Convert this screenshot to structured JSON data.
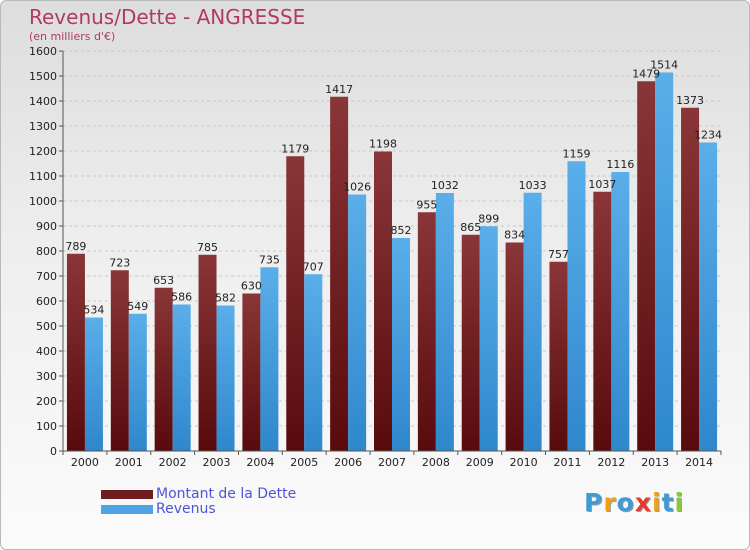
{
  "title": "Revenus/Dette - ANGRESSE",
  "subtitle": "(en milliers d'€)",
  "logo_text": "Proxiti",
  "logo_letter_colors": [
    "#3f9bd4",
    "#f2a013",
    "#3f9bd4",
    "#e83a2f",
    "#f2a013",
    "#3f9bd4",
    "#8cc63f"
  ],
  "colors": {
    "dette_top": "#8a3638",
    "dette_bottom": "#580a0c",
    "revenus_top": "#5aaee9",
    "revenus_bottom": "#2f87cc",
    "grid": "#c8c8c8",
    "axis": "#555555"
  },
  "legend": [
    {
      "label": "Montant de la Dette",
      "color": "#6e1e20"
    },
    {
      "label": "Revenus",
      "color": "#4da3e3"
    }
  ],
  "chart_data": {
    "type": "bar",
    "title": "Revenus/Dette - ANGRESSE",
    "subtitle": "(en milliers d'€)",
    "categories": [
      "2000",
      "2001",
      "2002",
      "2003",
      "2004",
      "2005",
      "2006",
      "2007",
      "2008",
      "2009",
      "2010",
      "2011",
      "2012",
      "2013",
      "2014"
    ],
    "series": [
      {
        "name": "Montant de la Dette",
        "values": [
          789,
          723,
          653,
          785,
          630,
          1179,
          1417,
          1198,
          955,
          865,
          834,
          757,
          1037,
          1479,
          1373
        ]
      },
      {
        "name": "Revenus",
        "values": [
          534,
          549,
          586,
          582,
          735,
          707,
          1026,
          852,
          1032,
          899,
          1033,
          1159,
          1116,
          1514,
          1234
        ]
      }
    ],
    "ylim": [
      0,
      1600
    ],
    "yticks": [
      0,
      100,
      200,
      300,
      400,
      500,
      600,
      700,
      800,
      900,
      1000,
      1100,
      1200,
      1300,
      1400,
      1500,
      1600
    ],
    "grid": true,
    "legend_position": "bottom-left"
  }
}
